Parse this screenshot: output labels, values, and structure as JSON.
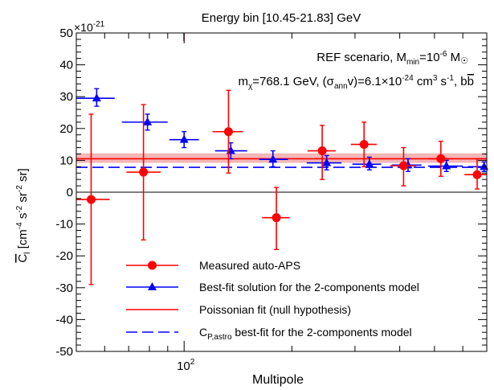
{
  "chart_data": {
    "type": "scatter",
    "title": "Energy bin [10.45-21.83] GeV",
    "xlabel": "Multipole",
    "ylabel_parts": {
      "main": "C",
      "sub": "l",
      "rest": " [cm",
      "e1": "-4",
      "s": " s",
      "e2": "-2",
      "sr": " sr",
      "e3": "-2",
      "tail": " sr]"
    },
    "x_scale": "log",
    "xlim": [
      50,
      700
    ],
    "ylim": [
      -50,
      50
    ],
    "y_multiplier": {
      "base": "×10",
      "exp": "-21"
    },
    "x_tick_labels": [
      {
        "value": 100,
        "base": "10",
        "exp": "2"
      }
    ],
    "y_ticks": [
      -50,
      -40,
      -30,
      -20,
      -10,
      0,
      10,
      20,
      30,
      40,
      50
    ],
    "y_tick_labels": [
      "-50",
      "-40",
      "-30",
      "-20",
      "-10",
      "0",
      "10",
      "20",
      "30",
      "40",
      "50"
    ],
    "annotation_scenario": {
      "a": "REF scenario, M",
      "a_sub": "min",
      "b": "=10",
      "b_sup": "-6",
      "c": " M",
      "c_sym": "☉"
    },
    "annotation_params": {
      "a": "m",
      "a_sub": "χ",
      "b": "=768.1 GeV, (σ",
      "b_sub": "ann",
      "c": "v)=6.1×10",
      "c_sup": "-24",
      "d": " cm",
      "d_sup": "3",
      "e": " s",
      "e_sup": "-1",
      "f": ", b",
      "g": "b"
    },
    "series": [
      {
        "name": "Measured auto-APS",
        "color": "#ff0000",
        "marker": "circle",
        "points": [
          {
            "x": 55,
            "xlo": 49,
            "xhi": 62,
            "y": -2.3,
            "ylo": -29,
            "yhi": 24.5
          },
          {
            "x": 77,
            "xlo": 69,
            "xhi": 86,
            "y": 6.3,
            "ylo": -15,
            "yhi": 27.5
          },
          {
            "x": 133,
            "xlo": 120,
            "xhi": 146,
            "y": 19,
            "ylo": 6,
            "yhi": 32
          },
          {
            "x": 181,
            "xlo": 165,
            "xhi": 197,
            "y": -8,
            "ylo": -18,
            "yhi": 1.5
          },
          {
            "x": 243,
            "xlo": 221,
            "xhi": 265,
            "y": 13,
            "ylo": 4,
            "yhi": 21
          },
          {
            "x": 318,
            "xlo": 292,
            "xhi": 345,
            "y": 15,
            "ylo": 8,
            "yhi": 22
          },
          {
            "x": 410,
            "xlo": 376,
            "xhi": 445,
            "y": 8.3,
            "ylo": 2,
            "yhi": 14
          },
          {
            "x": 521,
            "xlo": 480,
            "xhi": 563,
            "y": 10.5,
            "ylo": 5,
            "yhi": 16
          },
          {
            "x": 658,
            "xlo": 606,
            "xhi": 712,
            "y": 5.5,
            "ylo": 1,
            "yhi": 10.5
          }
        ]
      },
      {
        "name": "Best-fit solution for the 2-components model",
        "color": "#0000ff",
        "marker": "triangle",
        "points": [
          {
            "x": 57,
            "xlo": 50,
            "xhi": 64,
            "y": 29.5,
            "ylo": 27,
            "yhi": 32.5
          },
          {
            "x": 79,
            "xlo": 67,
            "xhi": 90,
            "y": 22,
            "ylo": 19.5,
            "yhi": 24.5
          },
          {
            "x": 100,
            "xlo": 91,
            "xhi": 110,
            "y": 16.5,
            "ylo": 14,
            "yhi": 19
          },
          {
            "x": 135,
            "xlo": 122,
            "xhi": 150,
            "y": 13,
            "ylo": 10.5,
            "yhi": 15.5
          },
          {
            "x": 177,
            "xlo": 162,
            "xhi": 195,
            "y": 10.3,
            "ylo": 8,
            "yhi": 13
          },
          {
            "x": 250,
            "xlo": 220,
            "xhi": 275,
            "y": 9.2,
            "ylo": 7,
            "yhi": 11.5
          },
          {
            "x": 329,
            "xlo": 295,
            "xhi": 355,
            "y": 8.8,
            "ylo": 7,
            "yhi": 11
          },
          {
            "x": 422,
            "xlo": 380,
            "xhi": 460,
            "y": 8.5,
            "ylo": 6.5,
            "yhi": 10.5
          },
          {
            "x": 540,
            "xlo": 480,
            "xhi": 600,
            "y": 8.2,
            "ylo": 6.5,
            "yhi": 10
          },
          {
            "x": 688,
            "xlo": 620,
            "xhi": 700,
            "y": 8,
            "ylo": 6.5,
            "yhi": 9.5
          }
        ]
      },
      {
        "name": "Poissonian fit (null hypothesis)",
        "color": "#ff0000",
        "line_style": "solid",
        "value": 10.5,
        "band": [
          9.2,
          12.2
        ],
        "band_color": "#f4b6b6"
      },
      {
        "name_parts": {
          "a": "C",
          "a_sub": "P,astro",
          "b": " best-fit for the 2-components model"
        },
        "color": "#0000ff",
        "line_style": "dashed",
        "value": 7.8
      }
    ]
  }
}
